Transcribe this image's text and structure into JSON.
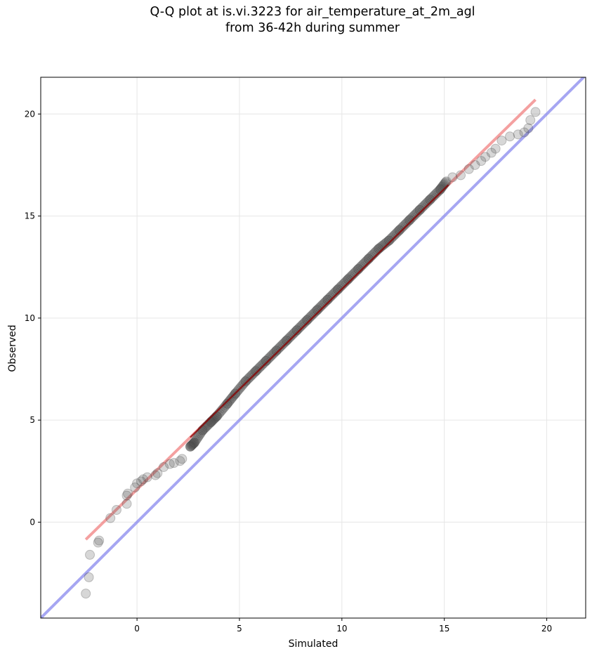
{
  "chart_data": {
    "type": "scatter",
    "title_line1": "Q-Q plot at is.vi.3223 for air_temperature_at_2m_agl",
    "title_line2": "from 36-42h during summer",
    "xlabel": "Simulated",
    "ylabel": "Observed",
    "xlim": [
      -4.7,
      21.9
    ],
    "ylim": [
      -4.7,
      21.8
    ],
    "x_ticks": [
      0,
      5,
      10,
      15,
      20
    ],
    "y_ticks": [
      0,
      5,
      10,
      15,
      20
    ],
    "x_tick_labels": [
      "0",
      "5",
      "10",
      "15",
      "20"
    ],
    "y_tick_labels": [
      "0",
      "5",
      "10",
      "15",
      "20"
    ],
    "grid": true,
    "colors": {
      "points": "#4a4a4a",
      "fit_line": "#f08080",
      "identity_line": "#8888ee",
      "fit_core": "#8b0000"
    },
    "series": [
      {
        "kind": "quantile_points",
        "points": [
          [
            -2.5,
            -3.5
          ],
          [
            -2.35,
            -2.7
          ],
          [
            -2.3,
            -1.6
          ],
          [
            -1.9,
            -1.0
          ],
          [
            -1.85,
            -0.9
          ],
          [
            -1.3,
            0.2
          ],
          [
            -1.0,
            0.6
          ],
          [
            -0.5,
            0.9
          ],
          [
            -0.5,
            1.3
          ],
          [
            -0.45,
            1.4
          ],
          [
            -0.1,
            1.7
          ],
          [
            0.0,
            1.9
          ],
          [
            0.2,
            2.0
          ],
          [
            0.3,
            2.1
          ],
          [
            0.5,
            2.2
          ],
          [
            0.9,
            2.3
          ],
          [
            1.0,
            2.4
          ],
          [
            1.3,
            2.7
          ],
          [
            1.6,
            2.85
          ],
          [
            1.8,
            2.9
          ],
          [
            2.1,
            3.0
          ],
          [
            2.2,
            3.1
          ],
          [
            2.6,
            3.7
          ],
          [
            2.8,
            3.9
          ],
          [
            3.2,
            4.5
          ],
          [
            3.6,
            4.9
          ],
          [
            3.9,
            5.2
          ],
          [
            4.4,
            5.8
          ],
          [
            4.8,
            6.3
          ],
          [
            5.3,
            6.9
          ],
          [
            5.8,
            7.4
          ],
          [
            6.3,
            7.9
          ],
          [
            6.8,
            8.4
          ],
          [
            7.3,
            8.9
          ],
          [
            7.8,
            9.4
          ],
          [
            8.3,
            9.9
          ],
          [
            8.8,
            10.4
          ],
          [
            9.3,
            10.9
          ],
          [
            9.8,
            11.4
          ],
          [
            10.3,
            11.9
          ],
          [
            10.8,
            12.4
          ],
          [
            11.3,
            12.9
          ],
          [
            11.8,
            13.4
          ],
          [
            12.3,
            13.8
          ],
          [
            12.8,
            14.3
          ],
          [
            13.3,
            14.8
          ],
          [
            13.8,
            15.3
          ],
          [
            14.3,
            15.8
          ],
          [
            14.8,
            16.3
          ],
          [
            15.1,
            16.7
          ],
          [
            15.4,
            16.9
          ],
          [
            15.8,
            17.0
          ],
          [
            16.2,
            17.3
          ],
          [
            16.5,
            17.5
          ],
          [
            16.8,
            17.7
          ],
          [
            17.0,
            17.9
          ],
          [
            17.3,
            18.1
          ],
          [
            17.5,
            18.3
          ],
          [
            17.8,
            18.7
          ],
          [
            18.2,
            18.9
          ],
          [
            18.6,
            19.0
          ],
          [
            18.9,
            19.1
          ],
          [
            19.1,
            19.3
          ],
          [
            19.2,
            19.7
          ],
          [
            19.45,
            20.1
          ]
        ]
      },
      {
        "kind": "fit_line",
        "x": [
          -2.5,
          19.45
        ],
        "y": [
          -0.85,
          20.7
        ]
      },
      {
        "kind": "identity_line",
        "x": [
          -4.7,
          21.9
        ],
        "y": [
          -4.7,
          21.9
        ]
      }
    ]
  }
}
